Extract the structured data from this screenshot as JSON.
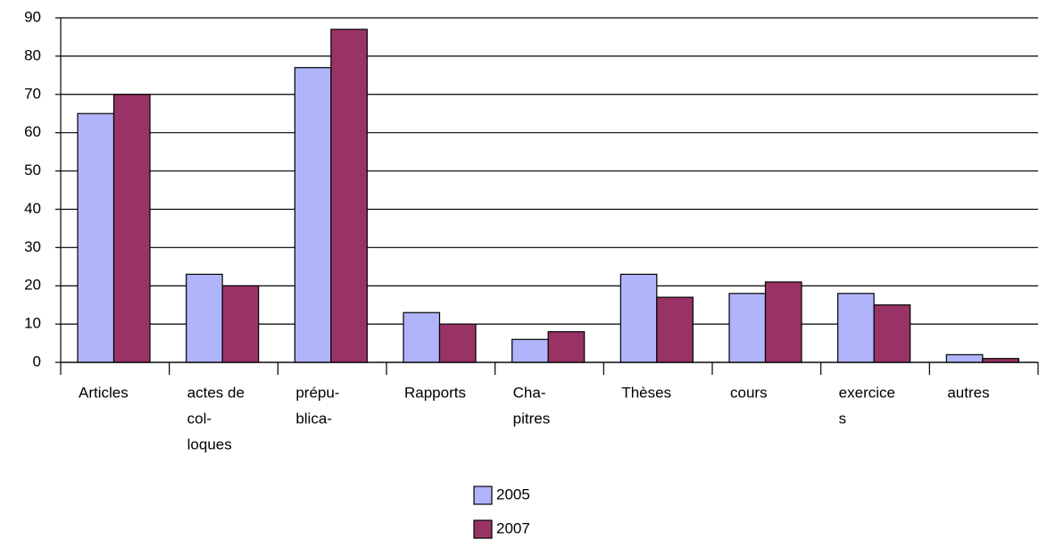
{
  "chart_data": {
    "type": "bar",
    "categories": [
      [
        "Articles"
      ],
      [
        "actes de",
        "col-",
        "loques"
      ],
      [
        "prépu-",
        "blica-"
      ],
      [
        "Rapports"
      ],
      [
        "Cha-",
        "pitres"
      ],
      [
        "Thèses"
      ],
      [
        "cours"
      ],
      [
        "exercice",
        "s"
      ],
      [
        "autres"
      ]
    ],
    "series": [
      {
        "name": "2005",
        "color": "#b0b4fa",
        "values": [
          65,
          23,
          77,
          13,
          6,
          23,
          18,
          18,
          2
        ]
      },
      {
        "name": "2007",
        "color": "#993366",
        "values": [
          70,
          20,
          87,
          10,
          8,
          17,
          21,
          15,
          1
        ]
      }
    ],
    "ylim": [
      0,
      90
    ],
    "yticks": [
      0,
      10,
      20,
      30,
      40,
      50,
      60,
      70,
      80,
      90
    ],
    "grid": true,
    "legend": "bottom"
  }
}
